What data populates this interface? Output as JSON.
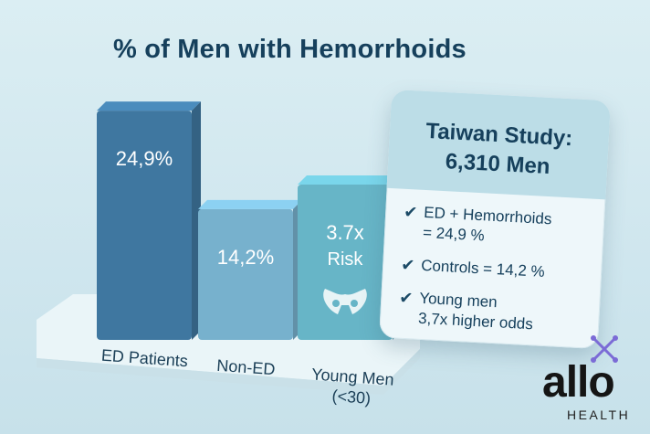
{
  "chart_data": {
    "type": "bar",
    "title": "% of Men with Hemorrhoids",
    "categories": [
      "ED Patients",
      "Non-ED",
      "Young Men\n(<30)"
    ],
    "values": [
      24.9,
      14.2,
      null
    ],
    "data_labels": [
      "24,9%",
      "14,2%",
      "3.7x\nRisk"
    ],
    "colors": [
      "#3f77a0",
      "#77b1cd",
      "#67b5c7"
    ],
    "ylim": [
      0,
      26
    ],
    "grid": false,
    "legend": "none"
  },
  "card": {
    "title_line1": "Taiwan Study:",
    "title_line2": "6,310 Men",
    "items": [
      {
        "check": "✔",
        "text_line1": "ED + Hemorrhoids",
        "text_line2": "= 24,9 %"
      },
      {
        "check": "✔",
        "text_line1": "Controls = 14,2 %",
        "text_line2": ""
      },
      {
        "check": "✔",
        "text_line1": "Young men",
        "text_line2": "3,7x higher odds"
      }
    ]
  },
  "brand": {
    "logo": "allo",
    "sub": "HEALTH",
    "accent": "#7b6bd6"
  },
  "icons": {
    "pelvis": "pelvis-icon",
    "check": "check-icon"
  }
}
